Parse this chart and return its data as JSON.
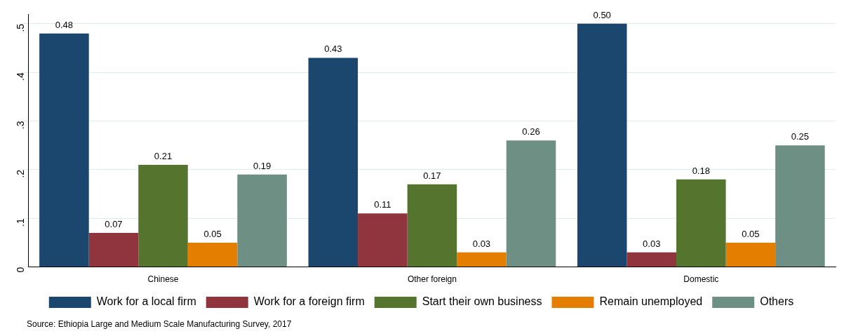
{
  "chart_data": {
    "type": "bar",
    "categories": [
      "Chinese",
      "Other foreign",
      "Domestic"
    ],
    "series": [
      {
        "name": "Work for a local firm",
        "color": "#1b466e",
        "values": [
          0.48,
          0.43,
          0.5
        ],
        "value_labels": [
          "0.48",
          "0.43",
          "0.50"
        ]
      },
      {
        "name": "Work for a foreign firm",
        "color": "#90353d",
        "values": [
          0.07,
          0.11,
          0.03
        ],
        "value_labels": [
          "0.07",
          "0.11",
          "0.03"
        ]
      },
      {
        "name": "Start their own business",
        "color": "#55752f",
        "values": [
          0.21,
          0.17,
          0.18
        ],
        "value_labels": [
          "0.21",
          "0.17",
          "0.18"
        ]
      },
      {
        "name": "Remain unemployed",
        "color": "#e37e00",
        "values": [
          0.05,
          0.03,
          0.05
        ],
        "value_labels": [
          "0.05",
          "0.03",
          "0.05"
        ]
      },
      {
        "name": "Others",
        "color": "#6e8f83",
        "values": [
          0.19,
          0.26,
          0.25
        ],
        "value_labels": [
          "0.19",
          "0.26",
          "0.25"
        ]
      }
    ],
    "ylim": [
      0,
      0.52
    ],
    "yticks": [
      {
        "value": 0,
        "label": "0"
      },
      {
        "value": 0.1,
        "label": ".1"
      },
      {
        "value": 0.2,
        "label": ".2"
      },
      {
        "value": 0.3,
        "label": ".3"
      },
      {
        "value": 0.4,
        "label": ".4"
      },
      {
        "value": 0.5,
        "label": ".5"
      }
    ],
    "grid": "y",
    "legend": "bottom",
    "annotations": [
      "Source: Ethiopia Large and Medium Scale Manufacturing Survey, 2017"
    ]
  }
}
